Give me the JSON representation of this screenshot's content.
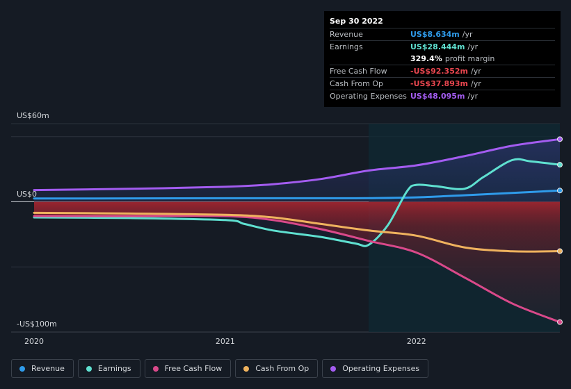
{
  "tooltip": {
    "date": "Sep 30 2022",
    "rows": [
      {
        "label": "Revenue",
        "value": "US$8.634m",
        "unit": "/yr",
        "color": "#2f9bea"
      },
      {
        "label": "Earnings",
        "value": "US$28.444m",
        "unit": "/yr",
        "color": "#5fe0d0"
      },
      {
        "label": "",
        "value": "329.4%",
        "unit": "profit margin",
        "color": "#ffffff"
      },
      {
        "label": "Free Cash Flow",
        "value": "-US$92.352m",
        "unit": "/yr",
        "color": "#e9464f"
      },
      {
        "label": "Cash From Op",
        "value": "-US$37.893m",
        "unit": "/yr",
        "color": "#e9464f"
      },
      {
        "label": "Operating Expenses",
        "value": "US$48.095m",
        "unit": "/yr",
        "color": "#a35cf0"
      }
    ]
  },
  "legend": [
    {
      "label": "Revenue",
      "color": "#2f9bea"
    },
    {
      "label": "Earnings",
      "color": "#5fe0d0"
    },
    {
      "label": "Free Cash Flow",
      "color": "#d9498a"
    },
    {
      "label": "Cash From Op",
      "color": "#efb25e"
    },
    {
      "label": "Operating Expenses",
      "color": "#a35cf0"
    }
  ],
  "chart_data": {
    "type": "line",
    "y_labels": {
      "top": "US$60m",
      "zero": "US$0",
      "bottom": "-US$100m"
    },
    "x_ticks": [
      "2020",
      "2021",
      "2022"
    ],
    "x_tick_values": [
      2020.0,
      2021.0,
      2022.0
    ],
    "ylim": [
      -100,
      60
    ],
    "xlim": [
      2019.88,
      2022.75
    ],
    "forecast_highlight_start": 2021.75,
    "grid": true,
    "series": [
      {
        "name": "Revenue",
        "color": "#2f9bea",
        "x": [
          2020.0,
          2020.5,
          2021.0,
          2021.5,
          2021.75,
          2022.0,
          2022.25,
          2022.5,
          2022.75
        ],
        "y": [
          2.5,
          2.6,
          2.7,
          2.7,
          2.8,
          3.4,
          5.0,
          6.8,
          8.634
        ]
      },
      {
        "name": "Earnings",
        "color": "#5fe0d0",
        "x": [
          2020.0,
          2020.5,
          2021.0,
          2021.1,
          2021.25,
          2021.5,
          2021.68,
          2021.75,
          2021.85,
          2021.95,
          2022.0,
          2022.1,
          2022.25,
          2022.35,
          2022.5,
          2022.6,
          2022.75
        ],
        "y": [
          -12,
          -12.5,
          -14,
          -17,
          -22,
          -27,
          -32,
          -33,
          -18,
          8,
          13,
          12,
          10,
          19,
          32,
          31,
          28.444
        ]
      },
      {
        "name": "Free Cash Flow",
        "color": "#d9498a",
        "x": [
          2020.0,
          2020.5,
          2021.0,
          2021.25,
          2021.5,
          2021.75,
          2022.0,
          2022.25,
          2022.5,
          2022.75
        ],
        "y": [
          -11,
          -11,
          -11,
          -14,
          -21,
          -30,
          -39,
          -58,
          -78,
          -92.352
        ]
      },
      {
        "name": "Cash From Op",
        "color": "#efb25e",
        "x": [
          2020.0,
          2020.5,
          2021.0,
          2021.25,
          2021.5,
          2021.75,
          2022.0,
          2022.25,
          2022.5,
          2022.75
        ],
        "y": [
          -8.5,
          -9,
          -10,
          -12,
          -17,
          -22,
          -26,
          -35,
          -38,
          -37.893
        ]
      },
      {
        "name": "Operating Expenses",
        "color": "#a35cf0",
        "x": [
          2020.0,
          2020.5,
          2021.0,
          2021.25,
          2021.5,
          2021.75,
          2022.0,
          2022.25,
          2022.5,
          2022.75
        ],
        "y": [
          9,
          10,
          11.5,
          13.5,
          17.5,
          24,
          28,
          35,
          43,
          48.095
        ]
      }
    ]
  }
}
